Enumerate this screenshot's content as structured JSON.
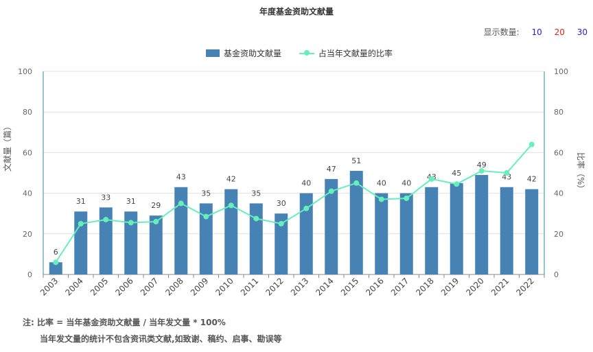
{
  "title": "年度基金资助文献量",
  "count_selector": {
    "label": "显示数量:",
    "options": [
      {
        "label": "10",
        "color": "#2222dd"
      },
      {
        "label": "20",
        "color": "#dd2222"
      },
      {
        "label": "30",
        "color": "#2222dd"
      }
    ]
  },
  "legend": {
    "bar_label": "基金资助文献量",
    "line_label": "占当年文献量的比率"
  },
  "notes": {
    "line1": "注:  比率 = 当年基金资助文献量 / 当年发文量 * 100%",
    "line2": "当年发文量的统计不包含资讯类文献,如致谢、稿约、启事、勘误等"
  },
  "colors": {
    "bar": "#4682b4",
    "line": "#66eebb",
    "axis": "#2a8fa0"
  },
  "chart_data": {
    "type": "bar",
    "categories": [
      "2003",
      "2004",
      "2005",
      "2006",
      "2007",
      "2008",
      "2009",
      "2010",
      "2011",
      "2012",
      "2013",
      "2014",
      "2015",
      "2016",
      "2017",
      "2018",
      "2019",
      "2020",
      "2021",
      "2022"
    ],
    "series": [
      {
        "name": "基金资助文献量",
        "type": "bar",
        "axis": "left",
        "values": [
          6,
          31,
          33,
          31,
          29,
          43,
          35,
          42,
          35,
          30,
          40,
          47,
          51,
          40,
          40,
          43,
          45,
          49,
          43,
          42
        ]
      },
      {
        "name": "占当年文献量的比率",
        "type": "line",
        "axis": "right",
        "values": [
          6,
          25,
          27,
          25.5,
          26,
          35,
          28.5,
          34,
          27.5,
          25,
          32.5,
          41,
          45,
          37,
          37.5,
          47,
          44.5,
          51,
          50,
          64
        ]
      }
    ],
    "ylabel": "文献量（篇）",
    "y2label": "比率（%）",
    "ylim": [
      0,
      100
    ],
    "y2lim": [
      0,
      100
    ],
    "yticks": [
      0,
      20,
      40,
      60,
      80,
      100
    ],
    "grid": true,
    "legend_position": "top-center"
  }
}
